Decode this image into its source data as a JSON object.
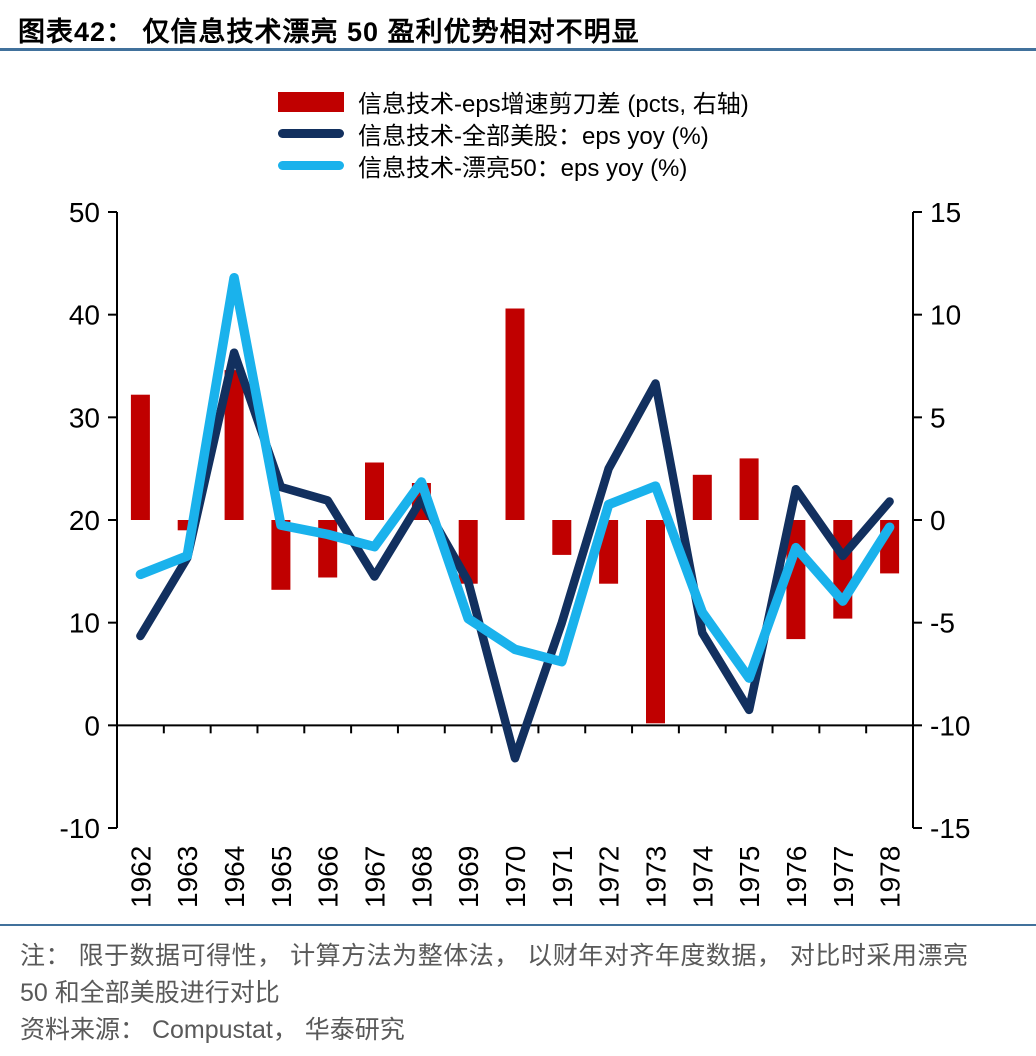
{
  "title": "图表42： 仅信息技术漂亮 50 盈利优势相对不明显",
  "legend": {
    "items": [
      {
        "label": "信息技术-eps增速剪刀差 (pcts, 右轴)",
        "swatch": "bar",
        "color": "#C00000"
      },
      {
        "label": "信息技术-全部美股：eps yoy (%)",
        "swatch": "line",
        "color": "#12305F"
      },
      {
        "label": "信息技术-漂亮50：eps yoy (%)",
        "swatch": "line",
        "color": "#1AB2EC"
      }
    ]
  },
  "chart_data": {
    "type": "combo-bar-line",
    "categories": [
      "1962",
      "1963",
      "1964",
      "1965",
      "1966",
      "1967",
      "1968",
      "1969",
      "1970",
      "1971",
      "1972",
      "1973",
      "1974",
      "1975",
      "1976",
      "1977",
      "1978"
    ],
    "series": [
      {
        "name": "信息技术-eps增速剪刀差 (pcts, 右轴)",
        "type": "bar",
        "axis": "right",
        "color": "#C00000",
        "values": [
          6.1,
          -0.5,
          7.3,
          -3.4,
          -2.8,
          2.8,
          1.8,
          -3.1,
          10.3,
          -1.7,
          -3.1,
          -9.9,
          2.2,
          3.0,
          -5.8,
          -4.8,
          -2.6
        ]
      },
      {
        "name": "信息技术-全部美股：eps yoy (%)",
        "type": "line",
        "axis": "left",
        "color": "#12305F",
        "stroke_width": 8.5,
        "values": [
          8.7,
          16.3,
          36.3,
          23.2,
          21.9,
          14.5,
          22.0,
          14.0,
          -3.2,
          10.0,
          25.0,
          33.3,
          9.0,
          1.5,
          23.0,
          16.5,
          21.8
        ]
      },
      {
        "name": "信息技术-漂亮50：eps yoy (%)",
        "type": "line",
        "axis": "left",
        "color": "#1AB2EC",
        "stroke_width": 9.5,
        "values": [
          14.7,
          16.5,
          43.6,
          19.5,
          18.6,
          17.4,
          23.7,
          10.4,
          7.4,
          6.2,
          21.5,
          23.3,
          11.0,
          4.6,
          17.3,
          12.1,
          19.3
        ]
      }
    ],
    "left_axis": {
      "min": -10,
      "max": 50,
      "ticks": [
        50,
        40,
        30,
        20,
        10,
        0,
        -10
      ]
    },
    "right_axis": {
      "min": -15,
      "max": 15,
      "ticks": [
        15,
        10,
        5,
        0,
        -5,
        -10,
        -15
      ]
    },
    "plot": {
      "bar_baseline_left": 20,
      "grid": false,
      "legend_position": "top"
    }
  },
  "notes": {
    "note_text": "注： 限于数据可得性， 计算方法为整体法， 以财年对齐年度数据， 对比时采用漂亮 50 和全部美股进行对比",
    "source_text": "资料来源： Compustat， 华泰研究"
  }
}
